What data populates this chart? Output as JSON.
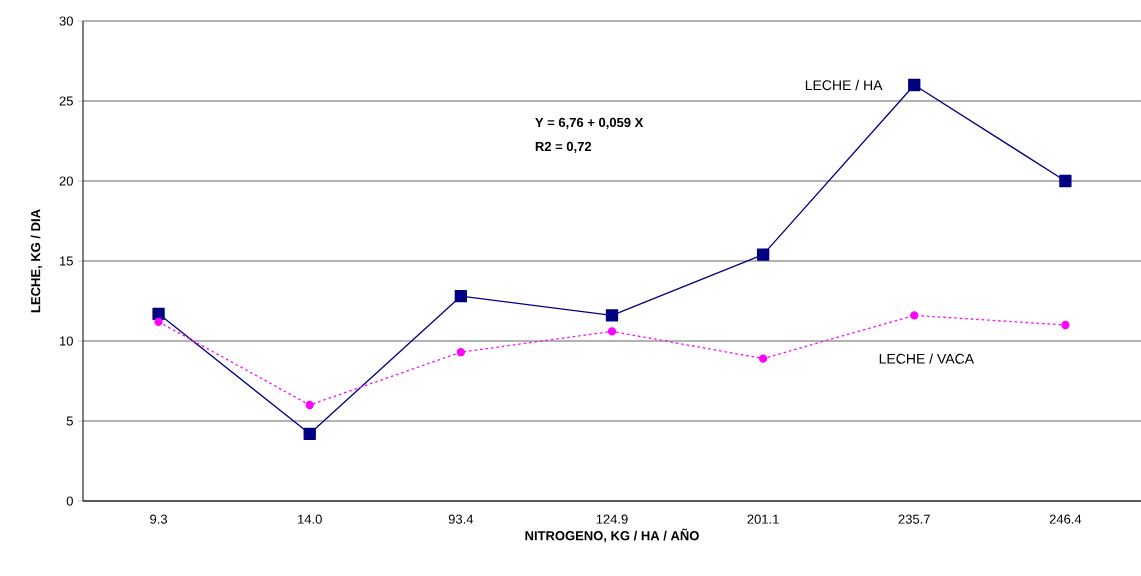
{
  "chart_data": {
    "type": "line",
    "xlabel": "NITROGENO, KG / HA / AÑO",
    "ylabel": "LECHE, KG / DIA",
    "categories": [
      "9.3",
      "14.0",
      "93.4",
      "124.9",
      "201.1",
      "235.7",
      "246.4"
    ],
    "series": [
      {
        "name": "LECHE / HA",
        "color": "#000080",
        "marker": "square",
        "line_style": "solid",
        "values": [
          11.7,
          4.2,
          12.8,
          11.6,
          15.4,
          26.0,
          20.0
        ]
      },
      {
        "name": "LECHE / VACA",
        "color": "#ff00ff",
        "marker": "circle",
        "line_style": "dotted",
        "values": [
          11.2,
          6.0,
          9.3,
          10.6,
          8.9,
          11.6,
          11.0
        ]
      }
    ],
    "annotations": [
      "Y = 6,76 + 0,059 X",
      "R2 = 0,72"
    ],
    "ylim": [
      0,
      30
    ],
    "yticks": [
      0,
      5,
      10,
      15,
      20,
      25,
      30
    ],
    "grid": "y",
    "legend": false
  }
}
